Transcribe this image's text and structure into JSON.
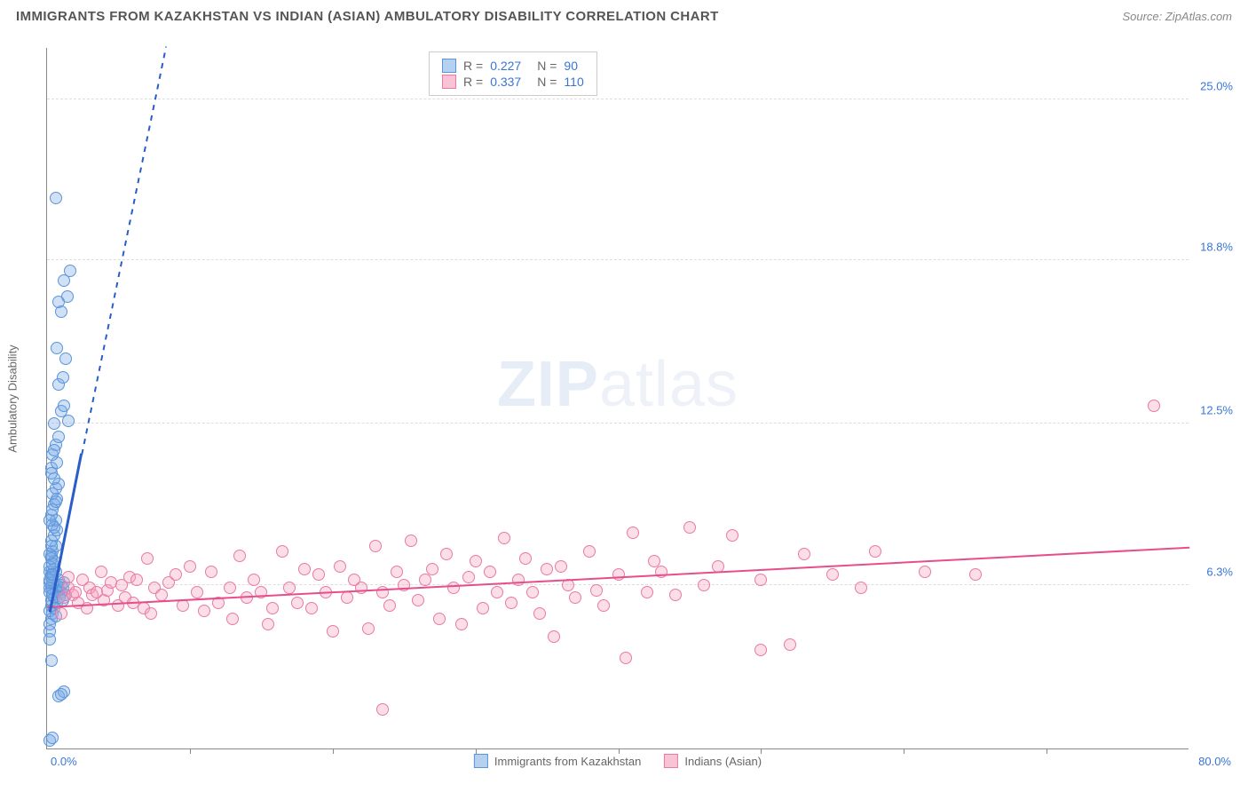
{
  "title": "IMMIGRANTS FROM KAZAKHSTAN VS INDIAN (ASIAN) AMBULATORY DISABILITY CORRELATION CHART",
  "source": "Source: ZipAtlas.com",
  "y_axis_label": "Ambulatory Disability",
  "watermark_a": "ZIP",
  "watermark_b": "atlas",
  "chart": {
    "type": "scatter",
    "xlim": [
      0,
      80
    ],
    "ylim": [
      0,
      27
    ],
    "x_label_min": "0.0%",
    "x_label_max": "80.0%",
    "y_ticks": [
      {
        "v": 6.3,
        "label": "6.3%"
      },
      {
        "v": 12.5,
        "label": "12.5%"
      },
      {
        "v": 18.8,
        "label": "18.8%"
      },
      {
        "v": 25.0,
        "label": "25.0%"
      }
    ],
    "x_tick_positions": [
      10,
      20,
      30,
      40,
      50,
      60,
      70
    ],
    "grid_color": "#dddddd",
    "axis_color": "#888888",
    "series": [
      {
        "name": "Immigrants from Kazakhstan",
        "color_fill": "#b6d0ef",
        "color_stroke": "#5a94db",
        "trend_color": "#2a5dc7",
        "R": 0.227,
        "N": 90,
        "trend_solid": {
          "x1": 0.2,
          "y1": 5.2,
          "x2": 2.4,
          "y2": 11.3
        },
        "trend_dash": {
          "x1": 2.4,
          "y1": 11.3,
          "x2": 8.3,
          "y2": 27
        },
        "points": [
          [
            0.2,
            0.3
          ],
          [
            0.4,
            0.4
          ],
          [
            0.8,
            2.0
          ],
          [
            1.2,
            2.2
          ],
          [
            1.0,
            2.1
          ],
          [
            0.2,
            4.5
          ],
          [
            0.3,
            5.0
          ],
          [
            0.4,
            5.2
          ],
          [
            0.3,
            5.5
          ],
          [
            0.5,
            5.8
          ],
          [
            0.4,
            6.0
          ],
          [
            0.6,
            6.1
          ],
          [
            0.3,
            6.2
          ],
          [
            0.2,
            6.0
          ],
          [
            0.7,
            6.3
          ],
          [
            0.5,
            6.4
          ],
          [
            0.8,
            6.5
          ],
          [
            0.4,
            6.6
          ],
          [
            0.3,
            6.7
          ],
          [
            0.6,
            6.8
          ],
          [
            0.2,
            6.8
          ],
          [
            0.9,
            6.1
          ],
          [
            1.0,
            6.3
          ],
          [
            1.0,
            6.0
          ],
          [
            1.1,
            6.2
          ],
          [
            1.2,
            6.4
          ],
          [
            1.3,
            5.9
          ],
          [
            0.3,
            7.4
          ],
          [
            0.5,
            7.2
          ],
          [
            0.4,
            7.6
          ],
          [
            0.6,
            7.8
          ],
          [
            0.3,
            8.0
          ],
          [
            0.5,
            8.2
          ],
          [
            0.7,
            8.4
          ],
          [
            0.4,
            8.6
          ],
          [
            0.6,
            8.8
          ],
          [
            0.3,
            9.0
          ],
          [
            0.5,
            9.4
          ],
          [
            0.7,
            9.6
          ],
          [
            0.4,
            9.8
          ],
          [
            0.6,
            10.0
          ],
          [
            0.8,
            10.2
          ],
          [
            0.5,
            10.4
          ],
          [
            0.3,
            10.8
          ],
          [
            0.7,
            11.0
          ],
          [
            0.4,
            11.3
          ],
          [
            0.6,
            11.7
          ],
          [
            0.8,
            12.0
          ],
          [
            0.5,
            12.5
          ],
          [
            1.0,
            13.0
          ],
          [
            1.2,
            13.2
          ],
          [
            0.8,
            14.0
          ],
          [
            1.1,
            14.3
          ],
          [
            1.3,
            15.0
          ],
          [
            0.7,
            15.4
          ],
          [
            1.5,
            12.6
          ],
          [
            1.0,
            16.8
          ],
          [
            0.8,
            17.2
          ],
          [
            1.4,
            17.4
          ],
          [
            1.2,
            18.0
          ],
          [
            1.6,
            18.4
          ],
          [
            0.6,
            21.2
          ],
          [
            0.2,
            5.3
          ],
          [
            0.3,
            5.7
          ],
          [
            0.2,
            6.2
          ],
          [
            0.4,
            5.9
          ],
          [
            0.2,
            6.4
          ],
          [
            0.3,
            6.6
          ],
          [
            0.5,
            6.9
          ],
          [
            0.2,
            7.0
          ],
          [
            0.4,
            7.1
          ],
          [
            0.3,
            7.3
          ],
          [
            0.5,
            5.4
          ],
          [
            0.7,
            5.6
          ],
          [
            0.9,
            5.8
          ],
          [
            1.1,
            5.7
          ],
          [
            0.2,
            4.8
          ],
          [
            0.2,
            4.2
          ],
          [
            0.6,
            5.1
          ],
          [
            0.3,
            3.4
          ],
          [
            0.2,
            6.5
          ],
          [
            0.4,
            6.7
          ],
          [
            0.2,
            7.5
          ],
          [
            0.3,
            7.8
          ],
          [
            0.5,
            8.5
          ],
          [
            0.2,
            8.8
          ],
          [
            0.4,
            9.2
          ],
          [
            0.6,
            9.5
          ],
          [
            0.3,
            10.6
          ],
          [
            0.5,
            11.5
          ]
        ]
      },
      {
        "name": "Indians (Asian)",
        "color_fill": "#f7c3d5",
        "color_stroke": "#e97aa3",
        "trend_color": "#e64e8a",
        "R": 0.337,
        "N": 110,
        "trend_solid": {
          "x1": 0,
          "y1": 5.4,
          "x2": 80,
          "y2": 7.7
        },
        "points": [
          [
            1.0,
            5.2
          ],
          [
            1.2,
            5.8
          ],
          [
            1.5,
            6.2
          ],
          [
            1.5,
            6.6
          ],
          [
            1.8,
            5.9
          ],
          [
            2.0,
            6.0
          ],
          [
            2.2,
            5.6
          ],
          [
            2.5,
            6.5
          ],
          [
            2.8,
            5.4
          ],
          [
            3.0,
            6.2
          ],
          [
            3.2,
            5.9
          ],
          [
            3.5,
            6.0
          ],
          [
            3.8,
            6.8
          ],
          [
            4.0,
            5.7
          ],
          [
            4.2,
            6.1
          ],
          [
            4.5,
            6.4
          ],
          [
            5.0,
            5.5
          ],
          [
            5.2,
            6.3
          ],
          [
            5.5,
            5.8
          ],
          [
            5.8,
            6.6
          ],
          [
            6.0,
            5.6
          ],
          [
            6.3,
            6.5
          ],
          [
            6.8,
            5.4
          ],
          [
            7.0,
            7.3
          ],
          [
            7.3,
            5.2
          ],
          [
            7.5,
            6.2
          ],
          [
            8.0,
            5.9
          ],
          [
            8.5,
            6.4
          ],
          [
            9.0,
            6.7
          ],
          [
            9.5,
            5.5
          ],
          [
            10.0,
            7.0
          ],
          [
            10.5,
            6.0
          ],
          [
            11.0,
            5.3
          ],
          [
            11.5,
            6.8
          ],
          [
            12.0,
            5.6
          ],
          [
            12.8,
            6.2
          ],
          [
            13.0,
            5.0
          ],
          [
            13.5,
            7.4
          ],
          [
            14.0,
            5.8
          ],
          [
            14.5,
            6.5
          ],
          [
            15.0,
            6.0
          ],
          [
            15.5,
            4.8
          ],
          [
            15.8,
            5.4
          ],
          [
            16.5,
            7.6
          ],
          [
            17.0,
            6.2
          ],
          [
            17.5,
            5.6
          ],
          [
            18.0,
            6.9
          ],
          [
            18.5,
            5.4
          ],
          [
            19.0,
            6.7
          ],
          [
            19.5,
            6.0
          ],
          [
            20.0,
            4.5
          ],
          [
            20.5,
            7.0
          ],
          [
            21.0,
            5.8
          ],
          [
            21.5,
            6.5
          ],
          [
            22.0,
            6.2
          ],
          [
            22.5,
            4.6
          ],
          [
            23.0,
            7.8
          ],
          [
            23.5,
            6.0
          ],
          [
            24.0,
            5.5
          ],
          [
            24.5,
            6.8
          ],
          [
            25.0,
            6.3
          ],
          [
            25.5,
            8.0
          ],
          [
            26.0,
            5.7
          ],
          [
            26.5,
            6.5
          ],
          [
            27.0,
            6.9
          ],
          [
            27.5,
            5.0
          ],
          [
            28.0,
            7.5
          ],
          [
            28.5,
            6.2
          ],
          [
            29.0,
            4.8
          ],
          [
            29.5,
            6.6
          ],
          [
            30.0,
            7.2
          ],
          [
            30.5,
            5.4
          ],
          [
            31.0,
            6.8
          ],
          [
            31.5,
            6.0
          ],
          [
            32.0,
            8.1
          ],
          [
            32.5,
            5.6
          ],
          [
            33.0,
            6.5
          ],
          [
            33.5,
            7.3
          ],
          [
            34.0,
            6.0
          ],
          [
            34.5,
            5.2
          ],
          [
            35.0,
            6.9
          ],
          [
            35.5,
            4.3
          ],
          [
            36.0,
            7.0
          ],
          [
            36.5,
            6.3
          ],
          [
            37.0,
            5.8
          ],
          [
            38.0,
            7.6
          ],
          [
            38.5,
            6.1
          ],
          [
            39.0,
            5.5
          ],
          [
            40.0,
            6.7
          ],
          [
            40.5,
            3.5
          ],
          [
            41.0,
            8.3
          ],
          [
            42.0,
            6.0
          ],
          [
            43.0,
            6.8
          ],
          [
            44.0,
            5.9
          ],
          [
            45.0,
            8.5
          ],
          [
            46.0,
            6.3
          ],
          [
            47.0,
            7.0
          ],
          [
            48.0,
            8.2
          ],
          [
            50.0,
            6.5
          ],
          [
            52.0,
            4.0
          ],
          [
            53.0,
            7.5
          ],
          [
            55.0,
            6.7
          ],
          [
            57.0,
            6.2
          ],
          [
            58.0,
            7.6
          ],
          [
            61.5,
            6.8
          ],
          [
            65.0,
            6.7
          ],
          [
            42.5,
            7.2
          ],
          [
            23.5,
            1.5
          ],
          [
            77.5,
            13.2
          ],
          [
            50.0,
            3.8
          ]
        ]
      }
    ]
  },
  "legend_top": {
    "rows": [
      {
        "swatch": "blue",
        "r_label": "R =",
        "r": "0.227",
        "n_label": "N =",
        "n": "90"
      },
      {
        "swatch": "pink",
        "r_label": "R =",
        "r": "0.337",
        "n_label": "N =",
        "n": "110"
      }
    ]
  },
  "legend_bottom": [
    {
      "swatch": "blue",
      "label": "Immigrants from Kazakhstan"
    },
    {
      "swatch": "pink",
      "label": "Indians (Asian)"
    }
  ]
}
